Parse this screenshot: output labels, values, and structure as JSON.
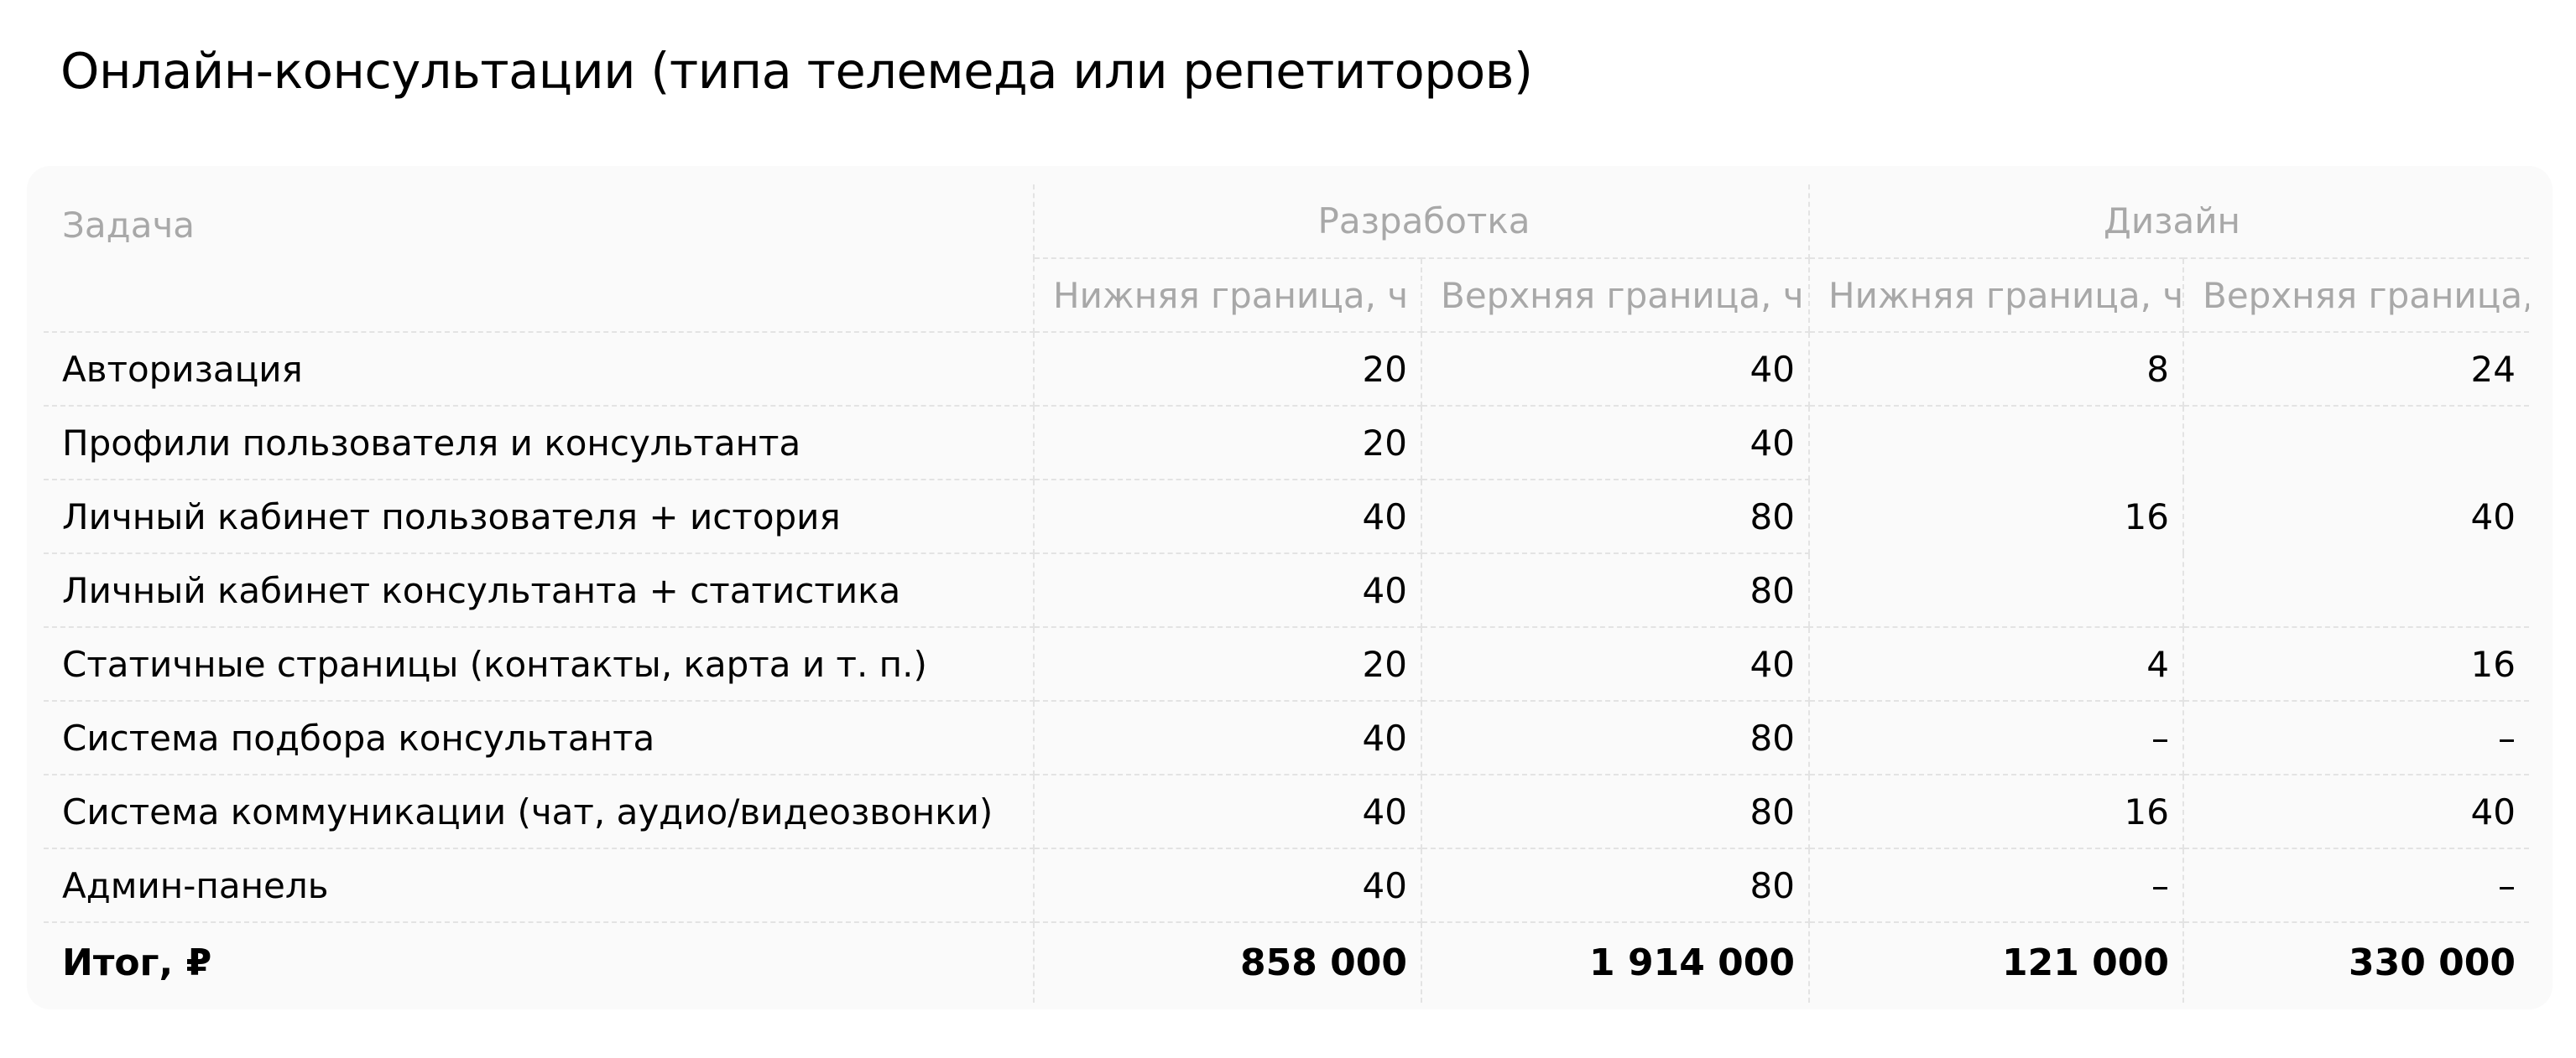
{
  "title": "Онлайн-консультации (типа телемеда или репетиторов)",
  "table": {
    "task_header": "Задача",
    "groups": {
      "development": "Разработка",
      "design": "Дизайн"
    },
    "subheaders": {
      "dev_low": "Нижняя граница, ч",
      "dev_high": "Верхняя граница, ч",
      "design_low": "Нижняя граница, ч",
      "design_high": "Верхняя граница, ч"
    },
    "rows": [
      {
        "task": "Авторизация",
        "dev_low": "20",
        "dev_high": "40",
        "design_low": "8",
        "design_high": "24"
      },
      {
        "task": "Профили пользователя и консультанта",
        "dev_low": "20",
        "dev_high": "40"
      },
      {
        "task": "Личный кабинет пользователя + история",
        "dev_low": "40",
        "dev_high": "80"
      },
      {
        "task": "Личный кабинет консультанта + статистика",
        "dev_low": "40",
        "dev_high": "80"
      },
      {
        "task": "Статичные страницы (контакты, карта и т. п.)",
        "dev_low": "20",
        "dev_high": "40",
        "design_low": "4",
        "design_high": "16"
      },
      {
        "task": "Система подбора консультанта",
        "dev_low": "40",
        "dev_high": "80",
        "design_low": "–",
        "design_high": "–"
      },
      {
        "task": "Система коммуникации (чат, аудио/видеозвонки)",
        "dev_low": "40",
        "dev_high": "80",
        "design_low": "16",
        "design_high": "40"
      },
      {
        "task": "Админ-панель",
        "dev_low": "40",
        "dev_high": "80",
        "design_low": "–",
        "design_high": "–"
      }
    ],
    "merged_design": {
      "design_low": "16",
      "design_high": "40"
    },
    "total": {
      "label": "Итог, ₽",
      "dev_low": "858 000",
      "dev_high": "1 914 000",
      "design_low": "121 000",
      "design_high": "330 000"
    }
  }
}
